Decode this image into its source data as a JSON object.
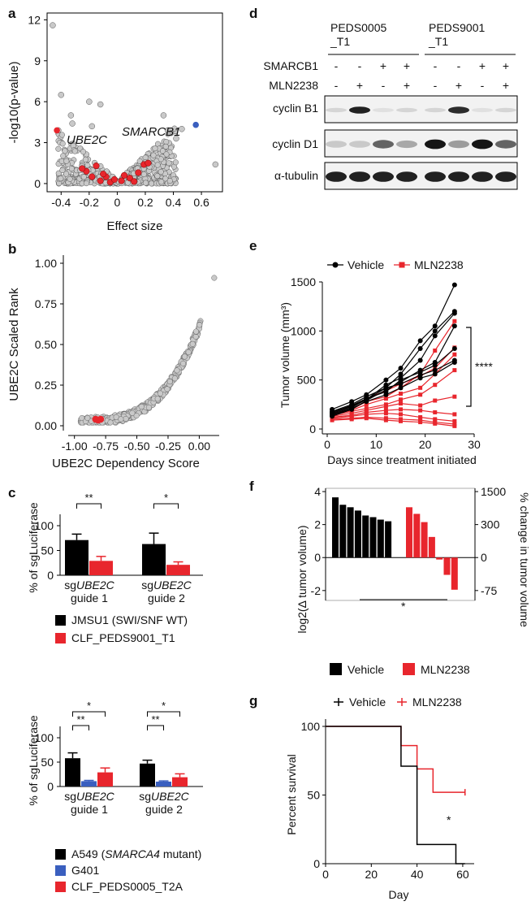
{
  "panels": {
    "a": {
      "letter": "a",
      "ylabel": "-log10(p-value)",
      "xlabel": "Effect size",
      "xticks": [
        "-0.4",
        "-0.2",
        "0",
        "0.2",
        "0.4",
        "0.6"
      ],
      "yticks": [
        "0",
        "3",
        "6",
        "9",
        "12"
      ],
      "xlim": [
        -0.5,
        0.75
      ],
      "ylim": [
        -0.6,
        12.5
      ],
      "label_ube2c": "UBE2C",
      "label_smarcb1": "SMARCB1",
      "outliers": [
        [
          -0.46,
          11.6
        ],
        [
          -0.4,
          6.5
        ],
        [
          -0.42,
          3.9
        ],
        [
          -0.33,
          5.0
        ],
        [
          -0.32,
          4.4
        ],
        [
          -0.2,
          6.0
        ],
        [
          -0.12,
          5.8
        ],
        [
          -0.18,
          4.2
        ],
        [
          0.33,
          5.0
        ],
        [
          0.7,
          1.4
        ],
        [
          0.46,
          4.0
        ],
        [
          0.42,
          3.3
        ],
        [
          0.36,
          3.9
        ]
      ],
      "smarcb1_point": [
        0.56,
        4.3
      ],
      "ube2c_point": [
        -0.43,
        3.9
      ],
      "red_points": [
        [
          -0.22,
          0.9
        ],
        [
          -0.18,
          0.5
        ],
        [
          -0.15,
          1.3
        ],
        [
          -0.12,
          0.2
        ],
        [
          -0.08,
          0.5
        ],
        [
          -0.05,
          0.1
        ],
        [
          -0.02,
          0.3
        ],
        [
          0.03,
          0.2
        ],
        [
          0.05,
          0.6
        ],
        [
          0.09,
          0.4
        ],
        [
          0.15,
          0.8
        ],
        [
          0.19,
          1.4
        ],
        [
          0.22,
          1.5
        ],
        [
          -0.1,
          0.7
        ],
        [
          0.12,
          0.15
        ],
        [
          -0.25,
          1.1
        ]
      ]
    },
    "b": {
      "letter": "b",
      "ylabel": "UBE2C Scaled Rank",
      "xlabel": "UBE2C Dependency Score",
      "xticks": [
        "-1.00",
        "-0.75",
        "-0.50",
        "-0.25",
        "0.00"
      ],
      "yticks": [
        "0.00",
        "0.25",
        "0.50",
        "0.75",
        "1.00"
      ],
      "xlim": [
        -1.05,
        0.16
      ],
      "ylim": [
        -0.03,
        1.05
      ],
      "red_points": [
        [
          -0.83,
          0.04
        ],
        [
          -0.79,
          0.04
        ],
        [
          -0.81,
          0.035
        ]
      ],
      "top_point": [
        0.12,
        0.91
      ]
    },
    "c": {
      "letter": "c",
      "top": {
        "ylabel": "% of sgLuciferase",
        "yticks": [
          "0",
          "50",
          "100"
        ],
        "ylim": [
          0,
          100
        ],
        "groups": [
          {
            "guide_prefix": "sg",
            "guide_gene": "UBE2C",
            "guide_suffix": "guide 1",
            "values": [
              71,
              29
            ],
            "errors": [
              12,
              9
            ],
            "sig": "**"
          },
          {
            "guide_prefix": "sg",
            "guide_gene": "UBE2C",
            "guide_suffix": "guide 2",
            "values": [
              63,
              21
            ],
            "errors": [
              22,
              6
            ],
            "sig": "*"
          }
        ],
        "legend": [
          {
            "label": "JMSU1 (SWI/SNF WT)",
            "color": "#000000"
          },
          {
            "label": "CLF_PEDS9001_T1",
            "color": "#e8262d"
          }
        ]
      },
      "bottom": {
        "ylabel": "% of sgLuciferase",
        "yticks": [
          "0",
          "50",
          "100"
        ],
        "ylim": [
          0,
          100
        ],
        "groups": [
          {
            "guide_prefix": "sg",
            "guide_gene": "UBE2C",
            "guide_suffix": "guide 1",
            "values": [
              58,
              11,
              29
            ],
            "errors": [
              11,
              1.5,
              9
            ],
            "sig_a": "**",
            "sig_b": "*"
          },
          {
            "guide_prefix": "sg",
            "guide_gene": "UBE2C",
            "guide_suffix": "guide 2",
            "values": [
              47,
              10,
              19
            ],
            "errors": [
              7,
              1.5,
              7
            ],
            "sig_a": "**",
            "sig_b": "*"
          }
        ],
        "legend": [
          {
            "pre": "A549 (",
            "italic": "SMARCA4",
            "post": " mutant)",
            "color": "#000000"
          },
          {
            "pre": "G401",
            "italic": "",
            "post": "",
            "color": "#3a5fbf"
          },
          {
            "pre": "CLF_PEDS0005_T2A",
            "italic": "",
            "post": "",
            "color": "#e8262d"
          }
        ]
      }
    },
    "d": {
      "letter": "d",
      "line1": [
        "PEDS0005",
        "PEDS9001"
      ],
      "line2": [
        "_T1",
        "_T1"
      ],
      "row_labels": [
        "SMARCB1",
        "MLN2238"
      ],
      "smarcb1": [
        "-",
        "-",
        "+",
        "+",
        "-",
        "-",
        "+",
        "+"
      ],
      "mln2238": [
        "-",
        "+",
        "-",
        "+",
        "-",
        "+",
        "-",
        "+"
      ],
      "blots": [
        "cyclin B1",
        "cyclin D1",
        "α-tubulin"
      ],
      "cyclinB1": [
        0.1,
        0.9,
        0.05,
        0.1,
        0.1,
        0.85,
        0.05,
        0.1
      ],
      "cyclinD1": [
        0.15,
        0.15,
        0.6,
        0.3,
        0.95,
        0.35,
        0.95,
        0.6
      ],
      "tubulin": [
        0.9,
        0.9,
        0.9,
        0.9,
        0.9,
        0.9,
        0.9,
        0.9
      ]
    },
    "e": {
      "letter": "e",
      "legend": [
        "Vehicle",
        "MLN2238"
      ],
      "ylabel": "Tumor volume (mm³)",
      "xlabel": "Days since treatment initiated",
      "xticks": [
        "0",
        "10",
        "20",
        "30"
      ],
      "yticks": [
        "0",
        "500",
        "1000",
        "1500"
      ],
      "xlim": [
        0,
        30
      ],
      "ylim": [
        0,
        1500
      ],
      "days": [
        1,
        5,
        8,
        12,
        15,
        19,
        22,
        26
      ],
      "sig": "****",
      "vehicle": [
        [
          200,
          280,
          350,
          500,
          620,
          900,
          1050,
          1470
        ],
        [
          180,
          250,
          330,
          420,
          560,
          820,
          1000,
          1200
        ],
        [
          150,
          220,
          300,
          450,
          520,
          700,
          950,
          1180
        ],
        [
          130,
          200,
          290,
          400,
          480,
          600,
          680,
          1050
        ],
        [
          170,
          240,
          310,
          380,
          500,
          580,
          650,
          820
        ],
        [
          160,
          230,
          300,
          420,
          460,
          550,
          600,
          700
        ],
        [
          140,
          210,
          280,
          350,
          420,
          520,
          560,
          680
        ]
      ],
      "mln": [
        [
          160,
          200,
          280,
          330,
          420,
          560,
          800,
          1100
        ],
        [
          170,
          230,
          310,
          390,
          460,
          540,
          620,
          830
        ],
        [
          150,
          190,
          250,
          310,
          360,
          420,
          560,
          760
        ],
        [
          140,
          180,
          210,
          250,
          300,
          350,
          450,
          600
        ],
        [
          130,
          160,
          190,
          230,
          260,
          240,
          290,
          330
        ],
        [
          120,
          140,
          170,
          190,
          200,
          190,
          170,
          150
        ],
        [
          110,
          130,
          150,
          160,
          150,
          120,
          100,
          80
        ],
        [
          100,
          110,
          120,
          110,
          100,
          90,
          70,
          50
        ],
        [
          90,
          100,
          110,
          90,
          80,
          70,
          55,
          30
        ]
      ]
    },
    "f": {
      "letter": "f",
      "ylabel": "log2(Δ tumor volume)",
      "ylabel_right": "% change in tumor volume",
      "yticks": [
        "-2",
        "0",
        "2",
        "4"
      ],
      "yticks_right": [
        "-75",
        "0",
        "300",
        "1500"
      ],
      "ylim": [
        -2.6,
        4.1
      ],
      "vehicle": [
        3.65,
        3.2,
        3.05,
        2.85,
        2.55,
        2.45,
        2.3,
        2.2
      ],
      "mln": [
        3.05,
        2.65,
        2.15,
        1.25,
        -0.12,
        -1.05,
        -1.95
      ],
      "sig": "*",
      "legend": [
        {
          "label": "Vehicle",
          "color": "#000000"
        },
        {
          "label": "MLN2238",
          "color": "#e8262d"
        }
      ]
    },
    "g": {
      "letter": "g",
      "legend": [
        "Vehicle",
        "MLN2238"
      ],
      "ylabel": "Percent survival",
      "xlabel": "Day",
      "xticks": [
        "0",
        "20",
        "40",
        "60"
      ],
      "yticks": [
        "0",
        "50",
        "100"
      ],
      "xlim": [
        0,
        65
      ],
      "ylim": [
        0,
        100
      ],
      "vehicle": [
        [
          0,
          100
        ],
        [
          33,
          100
        ],
        [
          33,
          71
        ],
        [
          40,
          71
        ],
        [
          40,
          14
        ],
        [
          57,
          14
        ],
        [
          57,
          0
        ],
        [
          61,
          0
        ]
      ],
      "mln": [
        [
          0,
          100
        ],
        [
          33,
          100
        ],
        [
          33,
          86
        ],
        [
          40,
          86
        ],
        [
          40,
          69
        ],
        [
          47,
          69
        ],
        [
          47,
          52
        ],
        [
          61,
          52
        ]
      ],
      "sig": "*"
    }
  }
}
